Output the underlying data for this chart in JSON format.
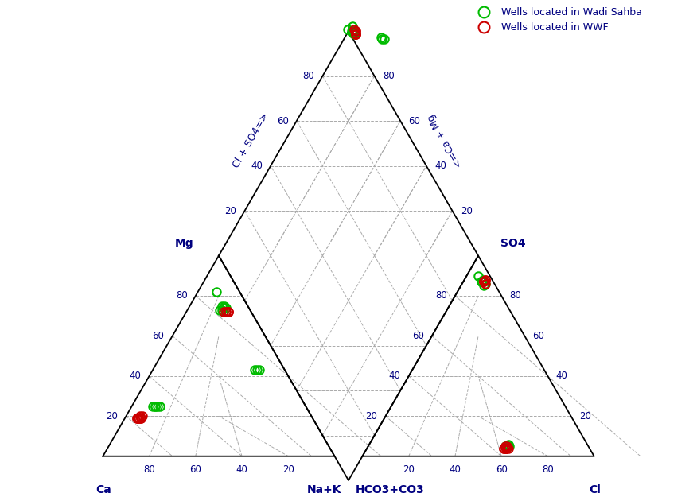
{
  "legend_labels": [
    "Wells located in Wadi Sahba",
    "Wells located in WWF"
  ],
  "green_color": "#00bb00",
  "red_color": "#cc0000",
  "label_color": "#000080",
  "grid_color": "#aaaaaa",
  "bg_color": "#ffffff",
  "wadi_sahba": [
    [
      10,
      8,
      82,
      5,
      90,
      5
    ],
    [
      12,
      15,
      73,
      5,
      87,
      8
    ],
    [
      10,
      16,
      74,
      5,
      87,
      8
    ],
    [
      11,
      14,
      75,
      4,
      88,
      8
    ],
    [
      10,
      15,
      75,
      5,
      87,
      8
    ],
    [
      12,
      16,
      72,
      5,
      85,
      10
    ],
    [
      11,
      15,
      74,
      5,
      87,
      8
    ],
    [
      13,
      14,
      73,
      4,
      86,
      10
    ],
    [
      12,
      45,
      43,
      35,
      5,
      60
    ],
    [
      11,
      46,
      43,
      34,
      5,
      61
    ],
    [
      13,
      44,
      43,
      35,
      5,
      60
    ],
    [
      65,
      10,
      25,
      35,
      5,
      60
    ],
    [
      64,
      11,
      25,
      34,
      6,
      60
    ],
    [
      66,
      9,
      25,
      36,
      5,
      59
    ],
    [
      65,
      10,
      25,
      35,
      5,
      60
    ],
    [
      63,
      12,
      25,
      35,
      5,
      60
    ]
  ],
  "wwf": [
    [
      10,
      18,
      72,
      4,
      87,
      9
    ],
    [
      11,
      17,
      72,
      3,
      88,
      9
    ],
    [
      10,
      18,
      72,
      4,
      87,
      9
    ],
    [
      12,
      16,
      72,
      4,
      86,
      10
    ],
    [
      11,
      17,
      72,
      3,
      88,
      9
    ],
    [
      10,
      18,
      72,
      4,
      87,
      9
    ],
    [
      75,
      6,
      19,
      36,
      4,
      60
    ],
    [
      74,
      7,
      19,
      35,
      5,
      60
    ],
    [
      75,
      6,
      19,
      37,
      4,
      59
    ],
    [
      73,
      7,
      20,
      36,
      4,
      60
    ],
    [
      76,
      5,
      19,
      36,
      5,
      59
    ],
    [
      74,
      7,
      19,
      35,
      4,
      61
    ],
    [
      75,
      6,
      19,
      36,
      4,
      60
    ],
    [
      74,
      6,
      20,
      36,
      4,
      60
    ],
    [
      76,
      5,
      19,
      37,
      4,
      59
    ]
  ]
}
